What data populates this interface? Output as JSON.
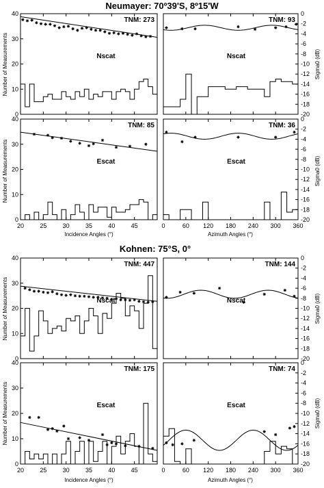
{
  "sections": [
    {
      "title": "Neumayer:  70º39'S, 8º15'W"
    },
    {
      "title": "Kohnen:  75°S, 0°"
    }
  ],
  "axes": {
    "left_ylabel": "Number of Measurements",
    "right_ylabel": "Sigma0   (dB)",
    "incidence_xlabel": "Incidence Angles  (°)",
    "azimuth_xlabel": "Azimuth Angles  (°)",
    "count_ticks": [
      0,
      10,
      20,
      30,
      40
    ],
    "sigma_ticks": [
      0,
      -2,
      -4,
      -6,
      -8,
      -10,
      -12,
      -14,
      -16,
      -18,
      -20
    ],
    "incidence_ticks": [
      20,
      25,
      30,
      35,
      40,
      45
    ],
    "azimuth_ticks": [
      0,
      60,
      120,
      180,
      240,
      300,
      360
    ]
  },
  "chart_data": [
    {
      "section": 0,
      "panel": "incidence",
      "sensor": "Nscat",
      "tnm": "TNM: 273",
      "type": "line",
      "xlim": [
        20,
        50
      ],
      "ylim_count": [
        0,
        40
      ],
      "ylim_sigma": [
        -20,
        0
      ],
      "fit_line": {
        "x": [
          20,
          50
        ],
        "sigma": [
          -0.6,
          -4.7
        ]
      },
      "points": {
        "x": [
          20.5,
          21.5,
          22.5,
          23.5,
          24.5,
          25.5,
          26.5,
          27.5,
          28.5,
          29.5,
          30.5,
          31.5,
          32.5,
          33.5,
          34.5,
          35.5,
          36.5,
          37.5,
          38.5,
          39.5,
          40.5,
          41.5,
          42.5,
          43.5,
          44.5,
          45.5,
          46.5,
          47.5,
          48.5
        ],
        "sigma": [
          -1.2,
          -1.4,
          -1.3,
          -1.8,
          -2.0,
          -2.1,
          -2.1,
          -2.4,
          -2.8,
          -2.6,
          -2.5,
          -3.0,
          -3.3,
          -2.9,
          -2.8,
          -3.1,
          -3.3,
          -3.3,
          -3.6,
          -3.9,
          -3.8,
          -4.0,
          -3.9,
          -4.1,
          -4.3,
          -4.0,
          -4.4,
          -4.6,
          -4.5
        ]
      },
      "histogram": {
        "edges": [
          20,
          21,
          22,
          23,
          24,
          25,
          26,
          27,
          28,
          29,
          30,
          31,
          32,
          33,
          34,
          35,
          36,
          37,
          38,
          39,
          40,
          41,
          42,
          43,
          44,
          45,
          46,
          47,
          48,
          49,
          50
        ],
        "counts": [
          12,
          3,
          12,
          5,
          5,
          7,
          8,
          6,
          6,
          9,
          7,
          6,
          9,
          7,
          10,
          6,
          8,
          7,
          9,
          9,
          6,
          9,
          10,
          9,
          6,
          10,
          13,
          14,
          11,
          8
        ]
      }
    },
    {
      "section": 0,
      "panel": "azimuth",
      "sensor": "Nscat",
      "tnm": "TNM: 93",
      "type": "line",
      "xlim": [
        0,
        360
      ],
      "ylim_count": [
        0,
        40
      ],
      "ylim_sigma": [
        -20,
        0
      ],
      "fit_curve": {
        "mean": -2.8,
        "amp": 0.5,
        "period": 180,
        "phase": 110
      },
      "points": {
        "x": [
          8,
          50,
          85,
          200,
          245,
          300,
          328,
          355
        ],
        "sigma": [
          -2.8,
          -3.0,
          -3.0,
          -2.6,
          -3.1,
          -2.8,
          -2.6,
          -2.1
        ]
      },
      "histogram": {
        "edges": [
          0,
          15,
          30,
          45,
          60,
          75,
          90,
          105,
          120,
          135,
          150,
          165,
          180,
          195,
          210,
          225,
          240,
          255,
          270,
          285,
          300,
          315,
          330,
          345,
          360
        ],
        "counts": [
          3,
          3,
          3,
          6,
          16,
          0,
          7,
          7,
          11,
          11,
          11,
          10,
          10,
          11,
          11,
          10,
          10,
          10,
          7,
          13,
          14,
          13,
          13,
          12
        ]
      }
    },
    {
      "section": 0,
      "panel": "incidence",
      "sensor": "Escat",
      "tnm": "TNM: 85",
      "type": "line",
      "xlim": [
        20,
        50
      ],
      "ylim_count": [
        0,
        40
      ],
      "ylim_sigma": [
        -20,
        0
      ],
      "fit_line": {
        "x": [
          20,
          50
        ],
        "sigma": [
          -2.6,
          -6.4
        ]
      },
      "points": {
        "x": [
          23,
          26,
          27,
          29,
          31,
          33,
          35,
          36,
          38,
          41,
          44,
          47.5
        ],
        "sigma": [
          -3.0,
          -3.2,
          -3.7,
          -3.8,
          -4.4,
          -4.8,
          -5.3,
          -4.9,
          -4.2,
          -5.6,
          -5.4,
          -5.0
        ]
      },
      "histogram": {
        "edges": [
          20,
          21,
          22,
          23,
          24,
          25,
          26,
          27,
          28,
          29,
          30,
          31,
          32,
          33,
          34,
          35,
          36,
          37,
          38,
          39,
          40,
          41,
          42,
          43,
          44,
          45,
          46,
          47,
          48,
          49,
          50
        ],
        "counts": [
          0,
          2,
          0,
          3,
          0,
          2,
          7,
          2,
          0,
          4,
          0,
          2,
          6,
          3,
          0,
          6,
          3,
          5,
          5,
          1,
          5,
          3,
          3,
          4,
          6,
          6,
          8,
          7,
          0,
          2
        ]
      }
    },
    {
      "section": 0,
      "panel": "azimuth",
      "sensor": "Escat",
      "tnm": "TNM: 36",
      "type": "line",
      "xlim": [
        0,
        360
      ],
      "ylim_count": [
        0,
        40
      ],
      "ylim_sigma": [
        -20,
        0
      ],
      "fit_curve": {
        "mean": -3.4,
        "amp": 0.6,
        "period": 180,
        "phase": 20
      },
      "points": {
        "x": [
          8,
          50,
          85,
          200,
          300,
          350
        ],
        "sigma": [
          -2.6,
          -4.5,
          -3.6,
          -3.6,
          -3.6,
          -2.6
        ]
      },
      "histogram": {
        "edges": [
          0,
          15,
          30,
          45,
          60,
          75,
          90,
          105,
          120,
          135,
          150,
          165,
          180,
          195,
          210,
          225,
          240,
          255,
          270,
          285,
          300,
          315,
          330,
          345,
          360
        ],
        "counts": [
          2,
          0,
          0,
          4,
          4,
          0,
          0,
          7,
          0,
          0,
          0,
          0,
          0,
          0,
          0,
          0,
          0,
          0,
          7,
          0,
          0,
          11,
          3,
          4
        ]
      }
    },
    {
      "section": 1,
      "panel": "incidence",
      "sensor": "Nscat",
      "tnm": "TNM: 447",
      "type": "line",
      "xlim": [
        20,
        50
      ],
      "ylim_count": [
        0,
        40
      ],
      "ylim_sigma": [
        -20,
        0
      ],
      "fit_line": {
        "x": [
          20,
          50
        ],
        "sigma": [
          -5.6,
          -8.6
        ]
      },
      "points": {
        "x": [
          21,
          22,
          23,
          24,
          25,
          26,
          27,
          28,
          29,
          30,
          31,
          32,
          33,
          34,
          35,
          36,
          37,
          38,
          39,
          40,
          41,
          42,
          43,
          44,
          45,
          46,
          47,
          48,
          49
        ],
        "sigma": [
          -6.0,
          -6.3,
          -6.6,
          -6.6,
          -6.8,
          -6.9,
          -6.7,
          -7.1,
          -7.3,
          -7.4,
          -7.3,
          -7.5,
          -7.6,
          -7.6,
          -7.7,
          -7.8,
          -7.8,
          -7.9,
          -8.0,
          -8.2,
          -8.1,
          -8.3,
          -8.3,
          -8.4,
          -8.3,
          -8.6,
          -8.7,
          -8.8,
          -8.7
        ]
      },
      "histogram": {
        "edges": [
          20,
          21,
          22,
          23,
          24,
          25,
          26,
          27,
          28,
          29,
          30,
          31,
          32,
          33,
          34,
          35,
          36,
          37,
          38,
          39,
          40,
          41,
          42,
          43,
          44,
          45,
          46,
          47,
          48,
          49,
          50
        ],
        "counts": [
          9,
          20,
          3,
          9,
          19,
          15,
          10,
          12,
          13,
          11,
          16,
          15,
          17,
          10,
          15,
          20,
          17,
          10,
          18,
          16,
          22,
          26,
          24,
          17,
          21,
          19,
          12,
          22,
          33,
          4
        ]
      }
    },
    {
      "section": 1,
      "panel": "azimuth",
      "sensor": "Nscat",
      "tnm": "TNM: 144",
      "type": "line",
      "xlim": [
        0,
        360
      ],
      "ylim_count": [
        0,
        40
      ],
      "ylim_sigma": [
        -20,
        0
      ],
      "fit_curve": {
        "mean": -7.2,
        "amp": 0.8,
        "period": 180,
        "phase": 100
      },
      "points": {
        "x": [
          8,
          45,
          82,
          150,
          215,
          270,
          325,
          350
        ],
        "sigma": [
          -7.8,
          -6.8,
          -7.0,
          -6.0,
          -8.8,
          -7.2,
          -6.4,
          -7.6
        ]
      },
      "histogram": {
        "edges": [
          0,
          15,
          30,
          45,
          60,
          75,
          90,
          105,
          120,
          135,
          150,
          165,
          180,
          195,
          210,
          225,
          240,
          255,
          270,
          285,
          300,
          315,
          330,
          345,
          360
        ],
        "counts": [
          0,
          0,
          0,
          0,
          0,
          0,
          0,
          0,
          0,
          0,
          0,
          0,
          0,
          0,
          0,
          0,
          0,
          0,
          0,
          0,
          0,
          0,
          0,
          0
        ]
      }
    },
    {
      "section": 1,
      "panel": "incidence",
      "sensor": "Escat",
      "tnm": "TNM: 175",
      "type": "line",
      "xlim": [
        20,
        50
      ],
      "ylim_count": [
        0,
        40
      ],
      "ylim_sigma": [
        -20,
        0
      ],
      "fit_line": {
        "x": [
          20,
          50
        ],
        "sigma": [
          -11.8,
          -17.3
        ]
      },
      "points": {
        "x": [
          22,
          24,
          26,
          27,
          28,
          29.5,
          30.5,
          33,
          35,
          38,
          39,
          40,
          41,
          43,
          46,
          49
        ],
        "sigma": [
          -10.8,
          -10.8,
          -13.2,
          -13.0,
          -13.5,
          -12.5,
          -15.0,
          -14.8,
          -15.3,
          -14.2,
          -16.2,
          -15.8,
          -16.0,
          -16.4,
          -16.5,
          -16.9
        ]
      },
      "histogram": {
        "edges": [
          20,
          21,
          22,
          23,
          24,
          25,
          26,
          27,
          28,
          29,
          30,
          31,
          32,
          33,
          34,
          35,
          36,
          37,
          38,
          39,
          40,
          41,
          42,
          43,
          44,
          45,
          46,
          47,
          48,
          49,
          50
        ],
        "counts": [
          0,
          5,
          2,
          4,
          2,
          4,
          0,
          4,
          0,
          4,
          9,
          0,
          5,
          9,
          0,
          9,
          1,
          5,
          9,
          0,
          7,
          11,
          4,
          9,
          12,
          7,
          0,
          24,
          4,
          1
        ]
      }
    },
    {
      "section": 1,
      "panel": "azimuth",
      "sensor": "Escat",
      "tnm": "TNM: 74",
      "type": "line",
      "xlim": [
        0,
        360
      ],
      "ylim_count": [
        0,
        40
      ],
      "ylim_sigma": [
        -20,
        0
      ],
      "fit_curve": {
        "mean": -15.3,
        "amp": 2.0,
        "period": 180,
        "phase": 60
      },
      "points": {
        "x": [
          8,
          25,
          50,
          82,
          270,
          300,
          338,
          350
        ],
        "sigma": [
          -15.8,
          -16.2,
          -16.0,
          -15.3,
          -13.6,
          -14.2,
          -12.9,
          -12.6
        ]
      },
      "histogram": {
        "edges": [
          0,
          15,
          30,
          45,
          60,
          75,
          90,
          105,
          120,
          135,
          150,
          165,
          180,
          195,
          210,
          225,
          240,
          255,
          270,
          285,
          300,
          315,
          330,
          345,
          360
        ],
        "counts": [
          11,
          14,
          1,
          0,
          6,
          0,
          0,
          0,
          0,
          0,
          0,
          0,
          0,
          0,
          0,
          0,
          0,
          0,
          5,
          9,
          4,
          7,
          6,
          0
        ]
      }
    }
  ]
}
